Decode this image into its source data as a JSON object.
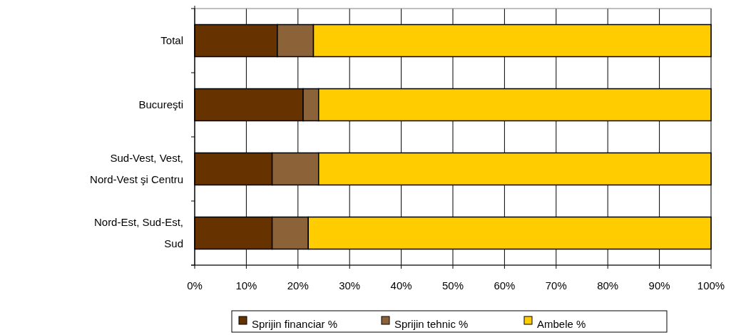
{
  "chart_data": {
    "type": "bar",
    "orientation": "horizontal",
    "stacked": true,
    "categories": [
      "Total",
      "Bucureşti",
      "Sud-Vest, Vest, Nord-Vest şi Centru",
      "Nord-Est, Sud-Est, Sud"
    ],
    "series": [
      {
        "name": "Sprijin financiar %",
        "color": "#663300",
        "values": [
          16,
          21,
          15,
          15
        ]
      },
      {
        "name": "Sprijin tehnic %",
        "color": "#8c6239",
        "values": [
          7,
          3,
          9,
          7
        ]
      },
      {
        "name": "Ambele %",
        "color": "#ffcc00",
        "values": [
          77,
          76,
          76,
          78
        ]
      }
    ],
    "xlim": [
      0,
      100
    ],
    "xticks": [
      {
        "value": 0,
        "label": "0%"
      },
      {
        "value": 10,
        "label": "10%"
      },
      {
        "value": 20,
        "label": "20%"
      },
      {
        "value": 30,
        "label": "30%"
      },
      {
        "value": 40,
        "label": "40%"
      },
      {
        "value": 50,
        "label": "50%"
      },
      {
        "value": 60,
        "label": "60%"
      },
      {
        "value": 70,
        "label": "70%"
      },
      {
        "value": 80,
        "label": "80%"
      },
      {
        "value": 90,
        "label": "90%"
      },
      {
        "value": 100,
        "label": "100%"
      }
    ],
    "grid": "x",
    "legend": "bottom"
  }
}
